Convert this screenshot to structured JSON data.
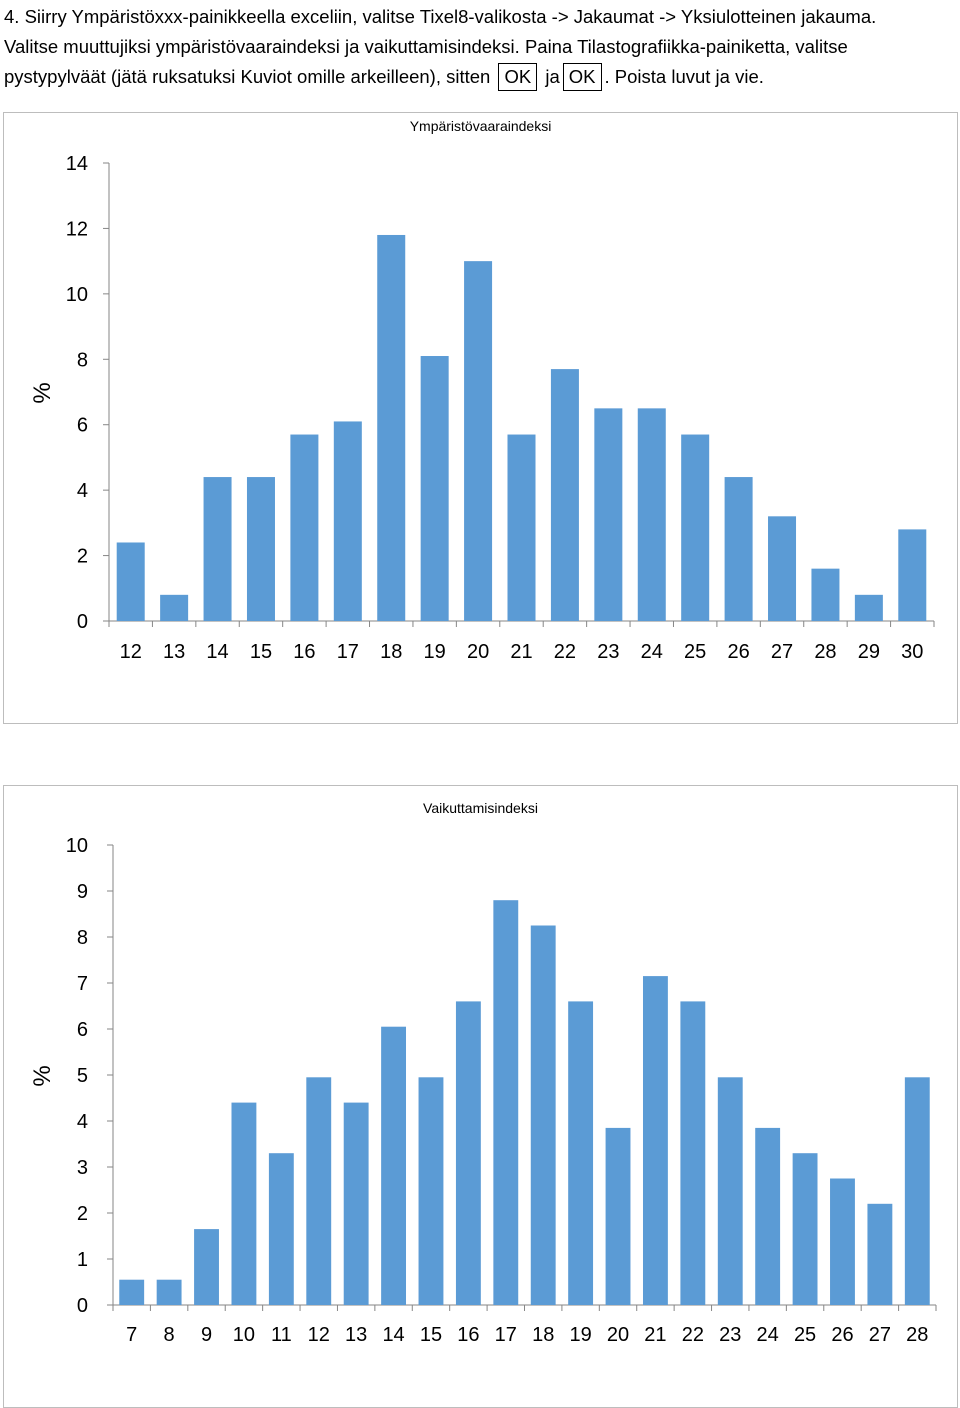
{
  "instructions": {
    "line1": "4. Siirry Ympäristöxxx-painikkeella exceliin, valitse Tixel8-valikosta -> Jakaumat -> Yksiulotteinen jakauma.",
    "line2": "Valitse muuttujiksi ympäristövaaraindeksi ja vaikuttamisindeksi. Paina Tilastografiikka-painiketta, valitse",
    "line3a": "pystypylväät (jätä ruksatuksi Kuviot omille arkeilleen), sitten",
    "ok1": "OK",
    "ja": "ja",
    "ok2": "OK",
    "line3b": ". Poista luvut ja vie."
  },
  "colors": {
    "bar": "#5b9bd5",
    "axis": "#868686",
    "frame": "#bdbdbd"
  },
  "chart_data": [
    {
      "type": "bar",
      "title": "Ympäristövaaraindeksi",
      "ylabel": "%",
      "xlabel": "",
      "ylim": [
        0,
        14
      ],
      "yticks": [
        0,
        2,
        4,
        6,
        8,
        10,
        12,
        14
      ],
      "grid": false,
      "categories": [
        "12",
        "13",
        "14",
        "15",
        "16",
        "17",
        "18",
        "19",
        "20",
        "21",
        "22",
        "23",
        "24",
        "25",
        "26",
        "27",
        "28",
        "29",
        "30"
      ],
      "values": [
        2.4,
        0.8,
        4.4,
        4.4,
        5.7,
        6.1,
        11.8,
        8.1,
        11.0,
        5.7,
        7.7,
        6.5,
        6.5,
        5.7,
        4.4,
        3.2,
        1.6,
        0.8,
        2.8
      ]
    },
    {
      "type": "bar",
      "title": "Vaikuttamisindeksi",
      "ylabel": "%",
      "xlabel": "",
      "ylim": [
        0,
        10
      ],
      "yticks": [
        0,
        1,
        2,
        3,
        4,
        5,
        6,
        7,
        8,
        9,
        10
      ],
      "grid": false,
      "categories": [
        "7",
        "8",
        "9",
        "10",
        "11",
        "12",
        "13",
        "14",
        "15",
        "16",
        "17",
        "18",
        "19",
        "20",
        "21",
        "22",
        "23",
        "24",
        "25",
        "26",
        "27",
        "28"
      ],
      "values": [
        0.55,
        0.55,
        1.65,
        4.4,
        3.3,
        4.95,
        4.4,
        6.05,
        4.95,
        6.6,
        8.8,
        8.25,
        6.6,
        3.85,
        7.15,
        6.6,
        4.95,
        3.85,
        3.3,
        2.75,
        2.2,
        4.95
      ]
    }
  ]
}
